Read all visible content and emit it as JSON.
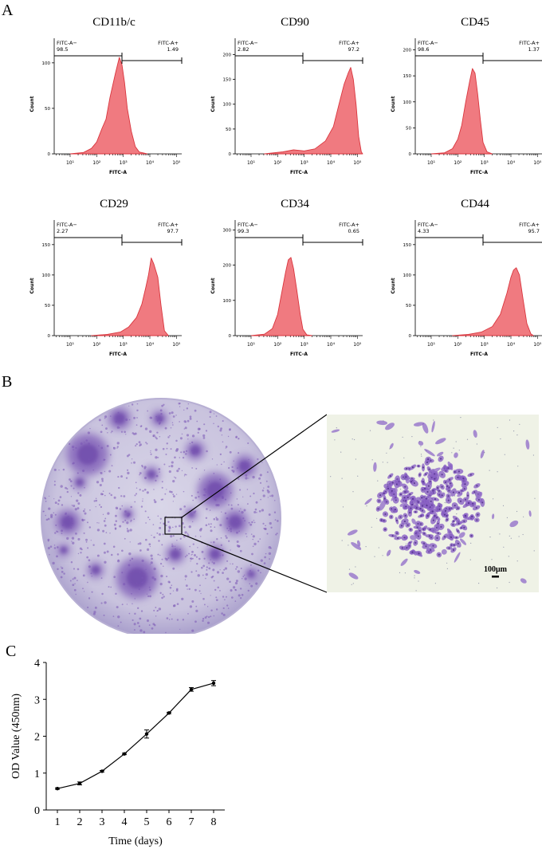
{
  "panels": {
    "a": "A",
    "b": "B",
    "c": "C"
  },
  "histograms": [
    {
      "title": "CD11b/c",
      "neg_label": "FITC-A−",
      "neg_value": "98.5",
      "pos_label": "FITC-A+",
      "pos_value": "1.49",
      "y_ticks": [
        "0",
        "50",
        "100"
      ],
      "y_label": "Count",
      "x_label": "FITC-A",
      "x_ticks": [
        "10¹",
        "10²",
        "10³",
        "10⁴",
        "10⁵"
      ],
      "color": "#f07a80",
      "curve": [
        [
          1.0,
          0.0
        ],
        [
          1.5,
          1.5
        ],
        [
          1.8,
          6
        ],
        [
          2.0,
          13
        ],
        [
          2.2,
          28
        ],
        [
          2.35,
          38
        ],
        [
          2.5,
          62
        ],
        [
          2.7,
          88
        ],
        [
          2.85,
          106
        ],
        [
          2.95,
          98
        ],
        [
          3.05,
          78
        ],
        [
          3.15,
          50
        ],
        [
          3.3,
          25
        ],
        [
          3.45,
          8
        ],
        [
          3.6,
          2
        ],
        [
          3.9,
          0
        ]
      ]
    },
    {
      "title": "CD90",
      "neg_label": "FITC-A−",
      "neg_value": "2.82",
      "pos_label": "FITC-A+",
      "pos_value": "97.2",
      "y_ticks": [
        "0",
        "50",
        "100",
        "150",
        "200"
      ],
      "y_label": "Count",
      "x_label": "FITC-A",
      "x_ticks": [
        "10¹",
        "10²",
        "10³",
        "10⁴",
        "10⁵"
      ],
      "color": "#f07a80",
      "curve": [
        [
          1.5,
          0
        ],
        [
          2.2,
          4
        ],
        [
          2.6,
          8
        ],
        [
          3.0,
          6
        ],
        [
          3.4,
          10
        ],
        [
          3.8,
          26
        ],
        [
          4.1,
          55
        ],
        [
          4.3,
          98
        ],
        [
          4.5,
          140
        ],
        [
          4.65,
          162
        ],
        [
          4.75,
          174
        ],
        [
          4.85,
          150
        ],
        [
          4.95,
          100
        ],
        [
          5.05,
          35
        ],
        [
          5.15,
          4
        ],
        [
          5.2,
          0
        ]
      ]
    },
    {
      "title": "CD45",
      "neg_label": "FITC-A−",
      "neg_value": "98.6",
      "pos_label": "FITC-A+",
      "pos_value": "1.37",
      "y_ticks": [
        "0",
        "50",
        "100",
        "150",
        "200"
      ],
      "y_label": "Count",
      "x_label": "FITC-A",
      "x_ticks": [
        "10¹",
        "10²",
        "10³",
        "10⁴",
        "10⁵"
      ],
      "color": "#f07a80",
      "curve": [
        [
          1.0,
          0
        ],
        [
          1.5,
          2
        ],
        [
          1.8,
          10
        ],
        [
          2.0,
          28
        ],
        [
          2.15,
          55
        ],
        [
          2.3,
          100
        ],
        [
          2.45,
          140
        ],
        [
          2.55,
          164
        ],
        [
          2.65,
          155
        ],
        [
          2.75,
          115
        ],
        [
          2.85,
          65
        ],
        [
          2.95,
          22
        ],
        [
          3.1,
          4
        ],
        [
          3.3,
          0
        ]
      ]
    },
    {
      "title": "CD29",
      "neg_label": "FITC-A−",
      "neg_value": "2.27",
      "pos_label": "FITC-A+",
      "pos_value": "97.7",
      "y_ticks": [
        "0",
        "50",
        "100",
        "150"
      ],
      "y_label": "Count",
      "x_label": "FITC-A",
      "x_ticks": [
        "10¹",
        "10²",
        "10³",
        "10⁴",
        "10⁵"
      ],
      "color": "#f07a80",
      "curve": [
        [
          1.8,
          0
        ],
        [
          2.4,
          2
        ],
        [
          2.9,
          6
        ],
        [
          3.2,
          14
        ],
        [
          3.5,
          30
        ],
        [
          3.7,
          52
        ],
        [
          3.85,
          80
        ],
        [
          3.95,
          100
        ],
        [
          4.05,
          128
        ],
        [
          4.15,
          118
        ],
        [
          4.3,
          96
        ],
        [
          4.42,
          50
        ],
        [
          4.55,
          8
        ],
        [
          4.7,
          0
        ]
      ]
    },
    {
      "title": "CD34",
      "neg_label": "FITC-A−",
      "neg_value": "99.3",
      "pos_label": "FITC-A+",
      "pos_value": "0.65",
      "y_ticks": [
        "0",
        "100",
        "200",
        "300"
      ],
      "y_label": "Count",
      "x_label": "FITC-A",
      "x_ticks": [
        "10¹",
        "10²",
        "10³",
        "10⁴",
        "10⁵"
      ],
      "color": "#f07a80",
      "curve": [
        [
          1.0,
          0
        ],
        [
          1.5,
          4
        ],
        [
          1.8,
          20
        ],
        [
          2.0,
          60
        ],
        [
          2.15,
          120
        ],
        [
          2.3,
          180
        ],
        [
          2.4,
          215
        ],
        [
          2.5,
          222
        ],
        [
          2.6,
          190
        ],
        [
          2.72,
          130
        ],
        [
          2.85,
          60
        ],
        [
          2.95,
          18
        ],
        [
          3.1,
          2
        ],
        [
          3.3,
          0
        ]
      ]
    },
    {
      "title": "CD44",
      "neg_label": "FITC-A−",
      "neg_value": "4.33",
      "pos_label": "FITC-A+",
      "pos_value": "95.7",
      "y_ticks": [
        "0",
        "50",
        "100",
        "150"
      ],
      "y_label": "Count",
      "x_label": "FITC-A",
      "x_ticks": [
        "10¹",
        "10²",
        "10³",
        "10⁴",
        "10⁵"
      ],
      "color": "#f07a80",
      "curve": [
        [
          1.8,
          0
        ],
        [
          2.4,
          2
        ],
        [
          2.9,
          6
        ],
        [
          3.3,
          15
        ],
        [
          3.6,
          35
        ],
        [
          3.85,
          70
        ],
        [
          4.0,
          96
        ],
        [
          4.1,
          108
        ],
        [
          4.2,
          112
        ],
        [
          4.32,
          100
        ],
        [
          4.45,
          62
        ],
        [
          4.6,
          20
        ],
        [
          4.75,
          3
        ],
        [
          4.85,
          0
        ]
      ]
    }
  ],
  "micrograph": {
    "scale_bar": "100μm",
    "stain_color": "#7a56b5",
    "background_color": "#eff2e6"
  },
  "chart_data": {
    "type": "line",
    "x": [
      1,
      2,
      3,
      4,
      5,
      6,
      7,
      8
    ],
    "values": [
      0.58,
      0.72,
      1.05,
      1.52,
      2.06,
      2.63,
      3.27,
      3.44
    ],
    "errors": [
      0.02,
      0.04,
      0.02,
      0.02,
      0.11,
      0.02,
      0.05,
      0.07
    ],
    "xlabel": "Time (days)",
    "ylabel": "OD Value (450nm)",
    "ylim": [
      0,
      4
    ],
    "xlim": [
      0.5,
      8.5
    ],
    "y_ticks": [
      "0",
      "1",
      "2",
      "3",
      "4"
    ],
    "x_ticks": [
      "1",
      "2",
      "3",
      "4",
      "5",
      "6",
      "7",
      "8"
    ],
    "grid": false,
    "color": "#000000"
  }
}
